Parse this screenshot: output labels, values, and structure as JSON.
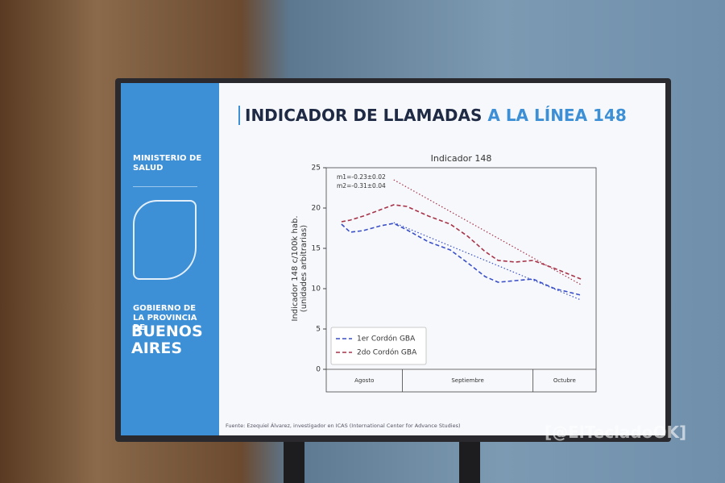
{
  "slide": {
    "title_main": "INDICADOR DE LLAMADAS",
    "title_accent": "A LA LÍNEA 148",
    "sidebar": {
      "ministry": "MINISTERIO DE SALUD",
      "government": "GOBIERNO DE LA PROVINCIA DE",
      "province": "BUENOS AIRES"
    },
    "source": "Fuente: Ezequiel Álvarez, investigador en ICAS (International Center for Advance Studies)"
  },
  "watermark": "[@ElTecladoOK]",
  "chart_data": {
    "type": "line",
    "title": "Indicador 148",
    "ylabel": [
      "Indicador 148 c/100k hab.",
      "(unidades arbitrarias)"
    ],
    "annotations": [
      "m1=-0.23±0.02",
      "m2=-0.31±0.04"
    ],
    "x": [
      17,
      19,
      22,
      26,
      29,
      32,
      37,
      42,
      46,
      50,
      53,
      57,
      61,
      66,
      72
    ],
    "xlim": [
      13.5,
      75.5
    ],
    "x_dividers": [
      31,
      61
    ],
    "x_section_labels": [
      "Agosto",
      "Septiembre",
      "Octubre"
    ],
    "ylim": [
      0,
      25
    ],
    "yticks": [
      0,
      5,
      10,
      15,
      20,
      25
    ],
    "series": [
      {
        "name": "1er Cordón GBA",
        "color": "#3a4fc8",
        "style": "dashed",
        "values": [
          18,
          17,
          17.2,
          17.8,
          18.1,
          17.3,
          15.8,
          14.8,
          13.2,
          11.5,
          10.8,
          11,
          11.2,
          10,
          9.2
        ]
      },
      {
        "name": "2do Cordón GBA",
        "color": "#a8344a",
        "style": "dashed",
        "values": [
          18.3,
          18.5,
          19,
          19.8,
          20.4,
          20.2,
          19,
          18,
          16.5,
          14.6,
          13.5,
          13.3,
          13.5,
          12.5,
          11.2
        ]
      }
    ],
    "fits": [
      {
        "color": "#3a4fc8",
        "style": "dotted",
        "x": [
          29,
          72
        ],
        "values": [
          18.2,
          8.6
        ]
      },
      {
        "color": "#a8344a",
        "style": "dotted",
        "x": [
          29,
          72
        ],
        "values": [
          23.5,
          10.5
        ]
      }
    ],
    "legend": "lower left"
  }
}
